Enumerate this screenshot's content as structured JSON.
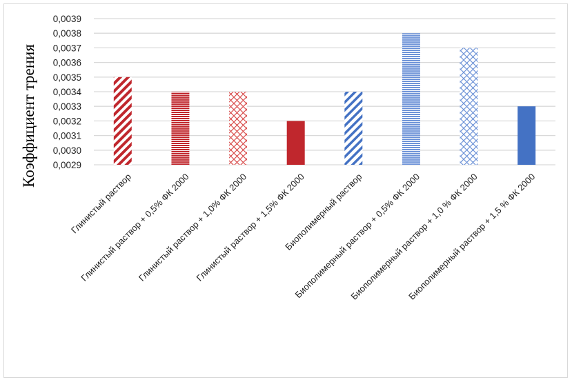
{
  "chart_data": {
    "type": "bar",
    "title": "",
    "xlabel": "",
    "ylabel": "Коэффициент трения",
    "ylim": [
      0.0029,
      0.0039
    ],
    "yticks": [
      "0,0029",
      "0,0030",
      "0,0031",
      "0,0032",
      "0,0033",
      "0,0034",
      "0,0035",
      "0,0036",
      "0,0037",
      "0,0038",
      "0,0039"
    ],
    "grid": true,
    "categories": [
      "Глинистый раствор",
      "Глинистый раствор + 0,5% ФК 2000",
      "Глинистый раствор + 1,0% ФК 2000",
      "Глинистый раствор + 1,5% ФК 2000",
      "Биополимерный раствор",
      "Биополимерный раствор + 0,5% ФК 2000",
      "Биополимерный раствор + 1,0 % ФК 2000",
      "Биополимерный раствор + 1,5 % ФК 2000"
    ],
    "values": [
      0.0035,
      0.0034,
      0.0034,
      0.0032,
      0.0034,
      0.0038,
      0.0037,
      0.0033
    ],
    "fills": [
      "diag-red",
      "horiz-red",
      "cross-red",
      "solid-red",
      "diag-blue",
      "horiz-blue",
      "cross-blue",
      "solid-blue"
    ],
    "colors": {
      "red": "#c0272d",
      "blue": "#4472c4",
      "lightblue": "#6f94d8",
      "grid": "#d9d9d9"
    }
  }
}
